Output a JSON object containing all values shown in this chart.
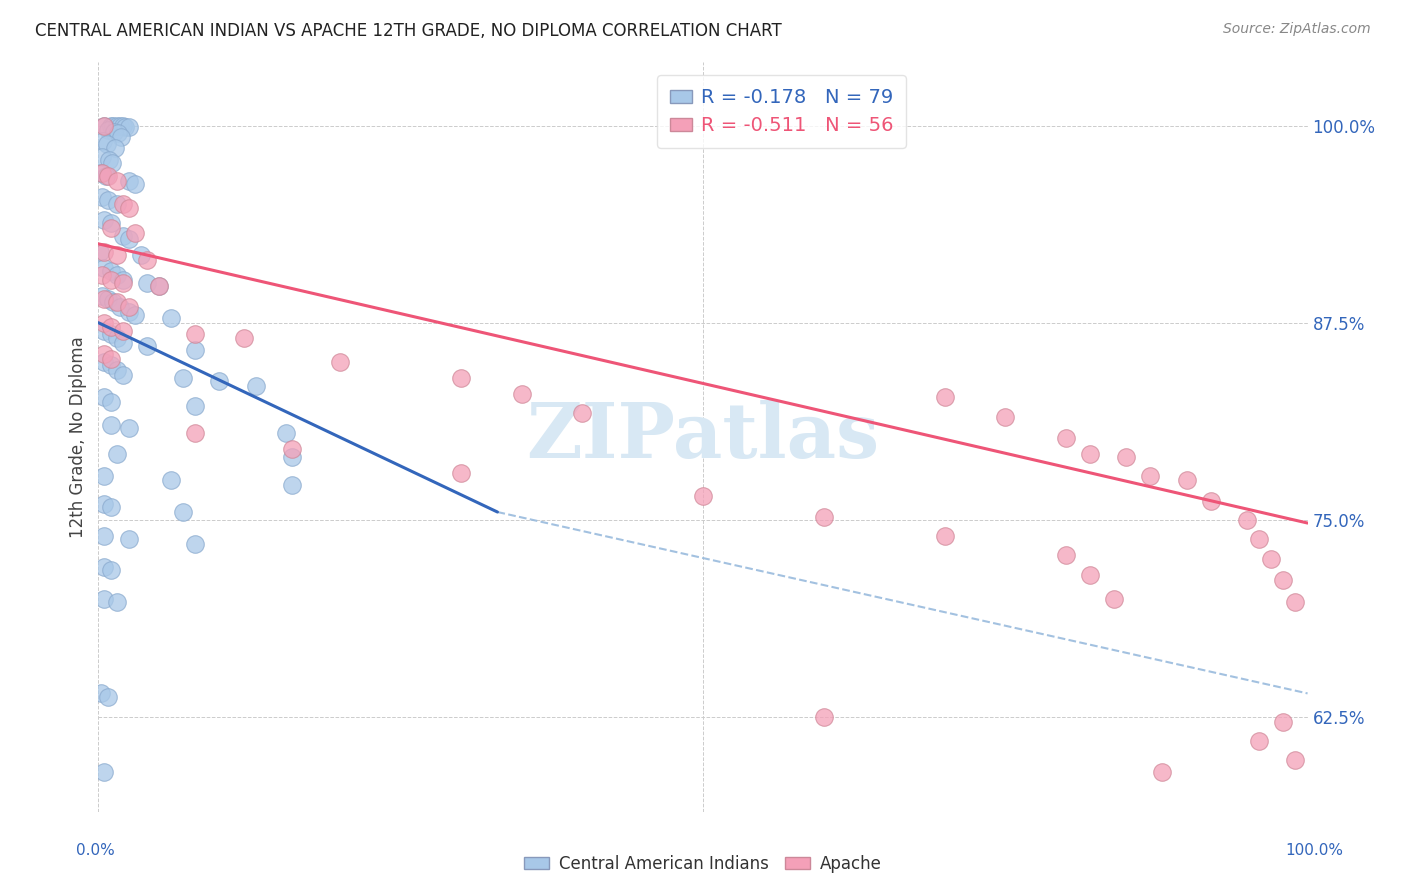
{
  "title": "CENTRAL AMERICAN INDIAN VS APACHE 12TH GRADE, NO DIPLOMA CORRELATION CHART",
  "source": "Source: ZipAtlas.com",
  "ylabel": "12th Grade, No Diploma",
  "legend_label1": "Central American Indians",
  "legend_label2": "Apache",
  "r1": -0.178,
  "n1": 79,
  "r2": -0.511,
  "n2": 56,
  "yticks": [
    0.625,
    0.75,
    0.875,
    1.0
  ],
  "ytick_labels": [
    "62.5%",
    "75.0%",
    "87.5%",
    "100.0%"
  ],
  "xmin": 0.0,
  "xmax": 1.0,
  "ymin": 0.565,
  "ymax": 1.04,
  "watermark": "ZIPatlas",
  "blue_color": "#A8C8E8",
  "pink_color": "#F4A0B8",
  "blue_line_color": "#3366BB",
  "pink_line_color": "#EE5577",
  "blue_line_x0": 0.0,
  "blue_line_y0": 0.875,
  "blue_line_x1": 0.33,
  "blue_line_y1": 0.755,
  "pink_line_x0": 0.0,
  "pink_line_y0": 0.925,
  "pink_line_x1": 1.0,
  "pink_line_y1": 0.748,
  "dashed_line_x0": 0.33,
  "dashed_line_y0": 0.755,
  "dashed_line_x1": 1.0,
  "dashed_line_y1": 0.64,
  "blue_points": [
    [
      0.005,
      1.0
    ],
    [
      0.01,
      1.0
    ],
    [
      0.012,
      1.0
    ],
    [
      0.015,
      1.0
    ],
    [
      0.018,
      1.0
    ],
    [
      0.02,
      1.0
    ],
    [
      0.022,
      0.999
    ],
    [
      0.025,
      0.999
    ],
    [
      0.008,
      0.997
    ],
    [
      0.013,
      0.996
    ],
    [
      0.016,
      0.995
    ],
    [
      0.019,
      0.993
    ],
    [
      0.004,
      0.99
    ],
    [
      0.007,
      0.988
    ],
    [
      0.014,
      0.986
    ],
    [
      0.003,
      0.98
    ],
    [
      0.009,
      0.978
    ],
    [
      0.011,
      0.976
    ],
    [
      0.002,
      0.97
    ],
    [
      0.006,
      0.968
    ],
    [
      0.025,
      0.965
    ],
    [
      0.03,
      0.963
    ],
    [
      0.003,
      0.955
    ],
    [
      0.008,
      0.953
    ],
    [
      0.015,
      0.95
    ],
    [
      0.005,
      0.94
    ],
    [
      0.01,
      0.938
    ],
    [
      0.02,
      0.93
    ],
    [
      0.025,
      0.928
    ],
    [
      0.001,
      0.92
    ],
    [
      0.035,
      0.918
    ],
    [
      0.005,
      0.91
    ],
    [
      0.01,
      0.908
    ],
    [
      0.015,
      0.905
    ],
    [
      0.02,
      0.902
    ],
    [
      0.04,
      0.9
    ],
    [
      0.05,
      0.898
    ],
    [
      0.003,
      0.892
    ],
    [
      0.008,
      0.89
    ],
    [
      0.012,
      0.888
    ],
    [
      0.018,
      0.885
    ],
    [
      0.025,
      0.882
    ],
    [
      0.03,
      0.88
    ],
    [
      0.06,
      0.878
    ],
    [
      0.005,
      0.87
    ],
    [
      0.01,
      0.868
    ],
    [
      0.015,
      0.865
    ],
    [
      0.02,
      0.862
    ],
    [
      0.04,
      0.86
    ],
    [
      0.08,
      0.858
    ],
    [
      0.005,
      0.85
    ],
    [
      0.01,
      0.848
    ],
    [
      0.015,
      0.845
    ],
    [
      0.02,
      0.842
    ],
    [
      0.07,
      0.84
    ],
    [
      0.1,
      0.838
    ],
    [
      0.13,
      0.835
    ],
    [
      0.005,
      0.828
    ],
    [
      0.01,
      0.825
    ],
    [
      0.08,
      0.822
    ],
    [
      0.01,
      0.81
    ],
    [
      0.025,
      0.808
    ],
    [
      0.155,
      0.805
    ],
    [
      0.015,
      0.792
    ],
    [
      0.16,
      0.79
    ],
    [
      0.005,
      0.778
    ],
    [
      0.06,
      0.775
    ],
    [
      0.16,
      0.772
    ],
    [
      0.005,
      0.76
    ],
    [
      0.01,
      0.758
    ],
    [
      0.07,
      0.755
    ],
    [
      0.005,
      0.74
    ],
    [
      0.025,
      0.738
    ],
    [
      0.08,
      0.735
    ],
    [
      0.005,
      0.72
    ],
    [
      0.01,
      0.718
    ],
    [
      0.005,
      0.7
    ],
    [
      0.015,
      0.698
    ],
    [
      0.002,
      0.64
    ],
    [
      0.008,
      0.638
    ],
    [
      0.005,
      0.59
    ]
  ],
  "pink_points": [
    [
      0.005,
      1.0
    ],
    [
      0.003,
      0.97
    ],
    [
      0.008,
      0.968
    ],
    [
      0.015,
      0.965
    ],
    [
      0.02,
      0.95
    ],
    [
      0.025,
      0.948
    ],
    [
      0.01,
      0.935
    ],
    [
      0.03,
      0.932
    ],
    [
      0.005,
      0.92
    ],
    [
      0.015,
      0.918
    ],
    [
      0.04,
      0.915
    ],
    [
      0.003,
      0.905
    ],
    [
      0.01,
      0.902
    ],
    [
      0.02,
      0.9
    ],
    [
      0.05,
      0.898
    ],
    [
      0.005,
      0.89
    ],
    [
      0.015,
      0.888
    ],
    [
      0.025,
      0.885
    ],
    [
      0.005,
      0.875
    ],
    [
      0.01,
      0.872
    ],
    [
      0.02,
      0.87
    ],
    [
      0.08,
      0.868
    ],
    [
      0.12,
      0.865
    ],
    [
      0.005,
      0.855
    ],
    [
      0.01,
      0.852
    ],
    [
      0.2,
      0.85
    ],
    [
      0.3,
      0.84
    ],
    [
      0.35,
      0.83
    ],
    [
      0.7,
      0.828
    ],
    [
      0.4,
      0.818
    ],
    [
      0.75,
      0.815
    ],
    [
      0.08,
      0.805
    ],
    [
      0.8,
      0.802
    ],
    [
      0.16,
      0.795
    ],
    [
      0.82,
      0.792
    ],
    [
      0.85,
      0.79
    ],
    [
      0.3,
      0.78
    ],
    [
      0.87,
      0.778
    ],
    [
      0.9,
      0.775
    ],
    [
      0.5,
      0.765
    ],
    [
      0.92,
      0.762
    ],
    [
      0.6,
      0.752
    ],
    [
      0.95,
      0.75
    ],
    [
      0.7,
      0.74
    ],
    [
      0.96,
      0.738
    ],
    [
      0.8,
      0.728
    ],
    [
      0.97,
      0.725
    ],
    [
      0.82,
      0.715
    ],
    [
      0.98,
      0.712
    ],
    [
      0.84,
      0.7
    ],
    [
      0.99,
      0.698
    ],
    [
      0.6,
      0.625
    ],
    [
      0.98,
      0.622
    ],
    [
      0.96,
      0.61
    ],
    [
      0.99,
      0.598
    ],
    [
      0.88,
      0.59
    ]
  ]
}
